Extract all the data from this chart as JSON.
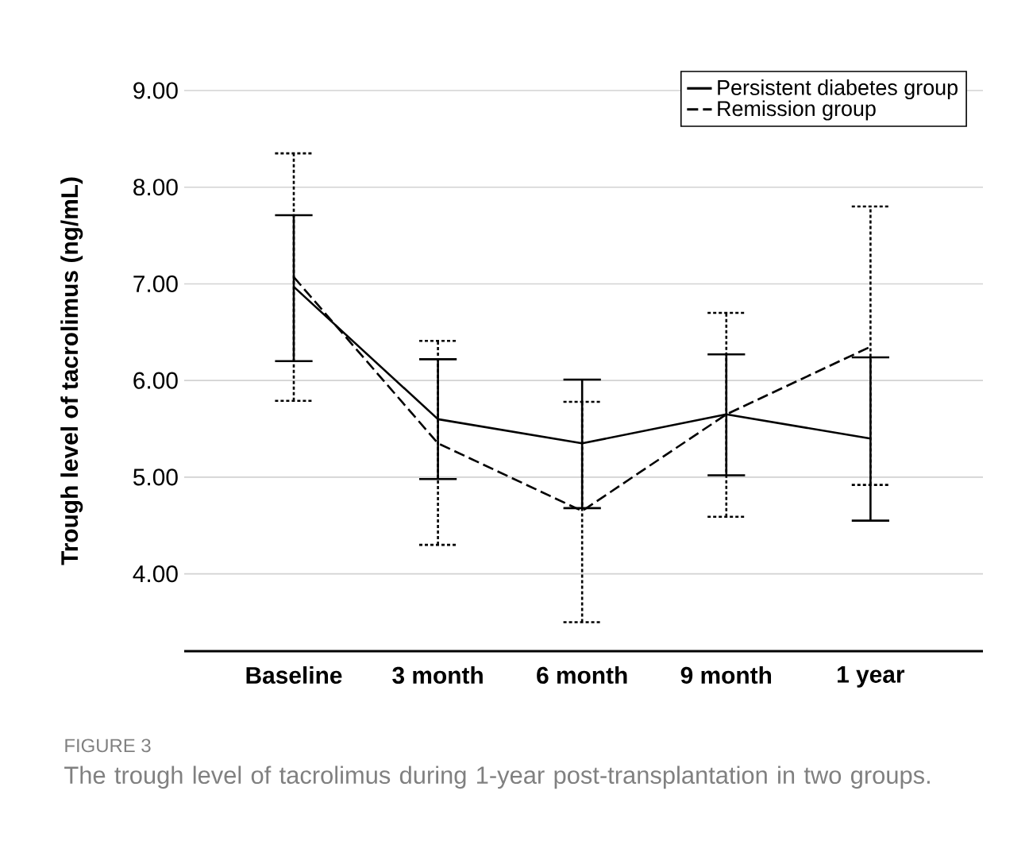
{
  "chart_data": {
    "type": "line",
    "categories": [
      "Baseline",
      "3 month",
      "6 month",
      "9 month",
      "1 year"
    ],
    "series": [
      {
        "name": "Persistent diabetes group",
        "color": "#000000",
        "line_style": "solid",
        "values": [
          6.97,
          5.6,
          5.35,
          5.65,
          5.4
        ],
        "errors": [
          [
            6.2,
            7.71
          ],
          [
            4.98,
            6.22
          ],
          [
            4.68,
            6.01
          ],
          [
            5.02,
            6.27
          ],
          [
            4.55,
            6.24
          ]
        ]
      },
      {
        "name": "Remission group",
        "color": "#000000",
        "line_style": "dashed",
        "values": [
          7.07,
          5.35,
          4.65,
          5.65,
          6.35
        ],
        "errors": [
          [
            5.79,
            8.35
          ],
          [
            4.3,
            6.41
          ],
          [
            3.5,
            5.78
          ],
          [
            4.59,
            6.7
          ],
          [
            4.92,
            7.8
          ]
        ]
      }
    ],
    "ylabel": "Trough level of tacrolimus (ng/mL)",
    "ylim": [
      3.2,
      9
    ],
    "yticks": [
      {
        "value": 4,
        "label": "4.00"
      },
      {
        "value": 5,
        "label": "5.00"
      },
      {
        "value": 6,
        "label": "6.00"
      },
      {
        "value": 7,
        "label": "7.00"
      },
      {
        "value": 8,
        "label": "8.00"
      },
      {
        "value": 9,
        "label": "9.00"
      }
    ],
    "grid": "y",
    "legend": "top right",
    "annotations": [
      "FIGURE 3",
      "The trough level of tacrolimus during 1-year post-transplantation in two groups."
    ]
  }
}
